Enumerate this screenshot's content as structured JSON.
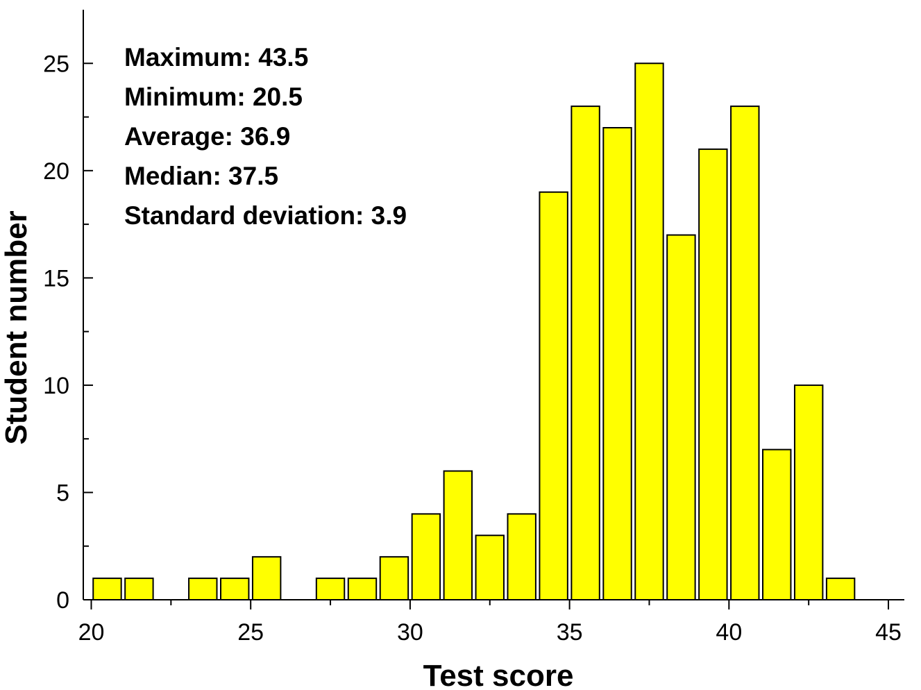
{
  "chart_data": {
    "type": "bar",
    "xlabel": "Test score",
    "ylabel": "Student number",
    "xlim": [
      19.75,
      45.5
    ],
    "ylim": [
      0,
      27.5
    ],
    "x_ticks": [
      20,
      25,
      30,
      35,
      40,
      45
    ],
    "y_ticks": [
      0,
      5,
      10,
      15,
      20,
      25
    ],
    "bar_color": "#ffff00",
    "bin_width": 1,
    "x": [
      20.5,
      21.5,
      22.5,
      23.5,
      24.5,
      25.5,
      26.5,
      27.5,
      28.5,
      29.5,
      30.5,
      31.5,
      32.5,
      33.5,
      34.5,
      35.5,
      36.5,
      37.5,
      38.5,
      39.5,
      40.5,
      41.5,
      42.5,
      43.5,
      44.5
    ],
    "values": [
      1,
      1,
      0,
      1,
      1,
      2,
      0,
      1,
      1,
      2,
      4,
      6,
      3,
      4,
      19,
      23,
      22,
      25,
      17,
      21,
      23,
      7,
      10,
      1,
      0
    ],
    "stats": [
      "Maximum:  43.5",
      "Minimum:  20.5",
      "Average:  36.9",
      "Median:  37.5",
      "Standard deviation: 3.9"
    ]
  }
}
